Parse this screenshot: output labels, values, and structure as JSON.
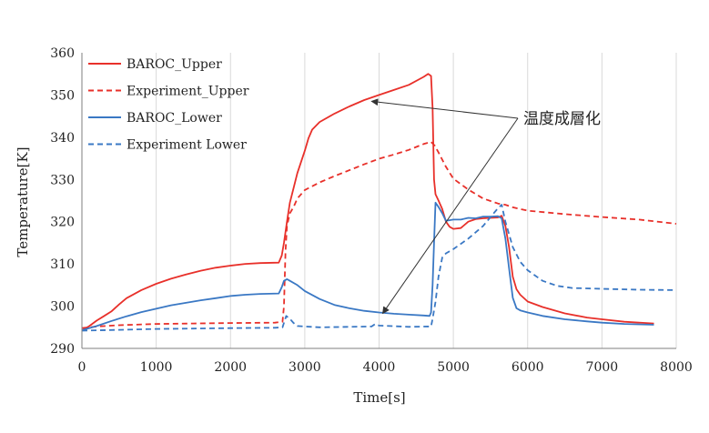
{
  "chart_data": {
    "type": "line",
    "title": "",
    "xlabel": "Time[s]",
    "ylabel": "Temperature[K]",
    "xlim": [
      0,
      8000
    ],
    "ylim": [
      290,
      360
    ],
    "x_ticks": [
      0,
      1000,
      2000,
      3000,
      4000,
      5000,
      6000,
      7000,
      8000
    ],
    "y_ticks": [
      290,
      300,
      310,
      320,
      330,
      340,
      350,
      360
    ],
    "grid": "vertical",
    "legend_position": "top-left",
    "series": [
      {
        "name": "BAROC_Upper",
        "color": "#e8302a",
        "style": "solid",
        "points": [
          [
            0,
            294.2
          ],
          [
            100,
            295.3
          ],
          [
            200,
            296.6
          ],
          [
            300,
            297.7
          ],
          [
            400,
            298.8
          ],
          [
            500,
            300.4
          ],
          [
            600,
            301.9
          ],
          [
            800,
            303.8
          ],
          [
            1000,
            305.3
          ],
          [
            1200,
            306.5
          ],
          [
            1400,
            307.5
          ],
          [
            1600,
            308.4
          ],
          [
            1800,
            309.1
          ],
          [
            2000,
            309.6
          ],
          [
            2200,
            310.0
          ],
          [
            2400,
            310.2
          ],
          [
            2650,
            310.3
          ],
          [
            2690,
            312.0
          ],
          [
            2720,
            315.0
          ],
          [
            2760,
            320.0
          ],
          [
            2800,
            324.5
          ],
          [
            2850,
            328.0
          ],
          [
            2900,
            331.5
          ],
          [
            3000,
            336.8
          ],
          [
            3050,
            339.8
          ],
          [
            3100,
            341.8
          ],
          [
            3200,
            343.6
          ],
          [
            3400,
            345.6
          ],
          [
            3600,
            347.3
          ],
          [
            3800,
            348.8
          ],
          [
            4000,
            350.0
          ],
          [
            4200,
            351.2
          ],
          [
            4400,
            352.4
          ],
          [
            4600,
            354.3
          ],
          [
            4660,
            355.0
          ],
          [
            4700,
            354.5
          ],
          [
            4720,
            347.0
          ],
          [
            4740,
            330.0
          ],
          [
            4760,
            326.5
          ],
          [
            4800,
            325.0
          ],
          [
            4850,
            323.0
          ],
          [
            4900,
            320.0
          ],
          [
            4950,
            318.8
          ],
          [
            5000,
            318.3
          ],
          [
            5100,
            318.5
          ],
          [
            5200,
            320.0
          ],
          [
            5300,
            320.6
          ],
          [
            5400,
            320.8
          ],
          [
            5500,
            320.9
          ],
          [
            5600,
            321.0
          ],
          [
            5650,
            321.4
          ],
          [
            5700,
            319.0
          ],
          [
            5750,
            314.0
          ],
          [
            5800,
            307.0
          ],
          [
            5850,
            304.0
          ],
          [
            5900,
            302.7
          ],
          [
            6000,
            301.1
          ],
          [
            6200,
            299.8
          ],
          [
            6500,
            298.3
          ],
          [
            6800,
            297.3
          ],
          [
            7000,
            296.9
          ],
          [
            7300,
            296.3
          ],
          [
            7700,
            295.9
          ]
        ]
      },
      {
        "name": "Experiment_Upper",
        "color": "#e8302a",
        "style": "dashed",
        "points": [
          [
            0,
            294.8
          ],
          [
            200,
            295.2
          ],
          [
            500,
            295.5
          ],
          [
            1000,
            295.8
          ],
          [
            1500,
            295.9
          ],
          [
            2000,
            296.0
          ],
          [
            2600,
            296.1
          ],
          [
            2700,
            296.3
          ],
          [
            2720,
            300.0
          ],
          [
            2740,
            313.0
          ],
          [
            2760,
            319.0
          ],
          [
            2800,
            322.0
          ],
          [
            2850,
            323.5
          ],
          [
            2900,
            325.5
          ],
          [
            3000,
            327.5
          ],
          [
            3200,
            329.3
          ],
          [
            3400,
            330.8
          ],
          [
            3600,
            332.2
          ],
          [
            3800,
            333.6
          ],
          [
            4000,
            334.9
          ],
          [
            4200,
            335.9
          ],
          [
            4400,
            337.0
          ],
          [
            4600,
            338.4
          ],
          [
            4700,
            338.9
          ],
          [
            4750,
            338.0
          ],
          [
            4800,
            336.4
          ],
          [
            4900,
            333.0
          ],
          [
            5000,
            330.2
          ],
          [
            5200,
            327.6
          ],
          [
            5400,
            325.5
          ],
          [
            5600,
            324.3
          ],
          [
            5700,
            324.0
          ],
          [
            5800,
            323.4
          ],
          [
            6000,
            322.6
          ],
          [
            6500,
            321.8
          ],
          [
            7000,
            321.1
          ],
          [
            7500,
            320.5
          ],
          [
            8000,
            319.5
          ]
        ]
      },
      {
        "name": "BAROC_Lower",
        "color": "#3a78c4",
        "style": "solid",
        "points": [
          [
            0,
            294.3
          ],
          [
            200,
            295.3
          ],
          [
            400,
            296.5
          ],
          [
            600,
            297.6
          ],
          [
            800,
            298.6
          ],
          [
            1000,
            299.4
          ],
          [
            1200,
            300.2
          ],
          [
            1400,
            300.8
          ],
          [
            1600,
            301.4
          ],
          [
            1800,
            301.9
          ],
          [
            2000,
            302.4
          ],
          [
            2200,
            302.7
          ],
          [
            2400,
            302.9
          ],
          [
            2650,
            303.0
          ],
          [
            2690,
            304.5
          ],
          [
            2720,
            306.0
          ],
          [
            2760,
            306.4
          ],
          [
            2800,
            306.0
          ],
          [
            2900,
            305.0
          ],
          [
            3000,
            303.6
          ],
          [
            3200,
            301.7
          ],
          [
            3400,
            300.3
          ],
          [
            3600,
            299.5
          ],
          [
            3800,
            298.9
          ],
          [
            4000,
            298.5
          ],
          [
            4200,
            298.2
          ],
          [
            4400,
            298.0
          ],
          [
            4600,
            297.8
          ],
          [
            4680,
            297.7
          ],
          [
            4700,
            298.5
          ],
          [
            4720,
            305.0
          ],
          [
            4740,
            315.0
          ],
          [
            4760,
            324.5
          ],
          [
            4800,
            323.5
          ],
          [
            4850,
            322.0
          ],
          [
            4900,
            320.2
          ],
          [
            5000,
            320.5
          ],
          [
            5100,
            320.5
          ],
          [
            5200,
            320.9
          ],
          [
            5300,
            320.8
          ],
          [
            5400,
            321.2
          ],
          [
            5500,
            321.2
          ],
          [
            5600,
            321.3
          ],
          [
            5650,
            320.8
          ],
          [
            5700,
            316.0
          ],
          [
            5750,
            309.0
          ],
          [
            5800,
            302.0
          ],
          [
            5850,
            299.5
          ],
          [
            5900,
            299.0
          ],
          [
            6000,
            298.5
          ],
          [
            6200,
            297.7
          ],
          [
            6500,
            296.9
          ],
          [
            6800,
            296.4
          ],
          [
            7000,
            296.1
          ],
          [
            7300,
            295.8
          ],
          [
            7700,
            295.6
          ]
        ]
      },
      {
        "name": "Experiment Lower",
        "color": "#3a78c4",
        "style": "dashed",
        "points": [
          [
            0,
            294.2
          ],
          [
            500,
            294.4
          ],
          [
            1000,
            294.6
          ],
          [
            1500,
            294.7
          ],
          [
            2000,
            294.8
          ],
          [
            2600,
            294.9
          ],
          [
            2700,
            295.0
          ],
          [
            2750,
            297.7
          ],
          [
            2800,
            297.0
          ],
          [
            2850,
            296.0
          ],
          [
            2900,
            295.3
          ],
          [
            3000,
            295.2
          ],
          [
            3200,
            295.0
          ],
          [
            3600,
            295.1
          ],
          [
            3900,
            295.2
          ],
          [
            3950,
            295.8
          ],
          [
            4000,
            295.4
          ],
          [
            4400,
            295.1
          ],
          [
            4700,
            295.2
          ],
          [
            4720,
            297.0
          ],
          [
            4760,
            301.0
          ],
          [
            4800,
            307.0
          ],
          [
            4850,
            311.5
          ],
          [
            4900,
            312.5
          ],
          [
            5000,
            313.5
          ],
          [
            5200,
            316.0
          ],
          [
            5400,
            319.0
          ],
          [
            5600,
            323.2
          ],
          [
            5650,
            324.0
          ],
          [
            5700,
            320.0
          ],
          [
            5800,
            314.0
          ],
          [
            5900,
            310.5
          ],
          [
            6000,
            308.5
          ],
          [
            6200,
            306.0
          ],
          [
            6400,
            304.8
          ],
          [
            6600,
            304.3
          ],
          [
            7000,
            304.1
          ],
          [
            7500,
            303.9
          ],
          [
            8000,
            303.8
          ]
        ]
      }
    ],
    "annotation": {
      "text": "温度成層化",
      "arrow_targets": [
        [
          3900,
          348.5
        ],
        [
          4050,
          298.3
        ]
      ]
    }
  }
}
